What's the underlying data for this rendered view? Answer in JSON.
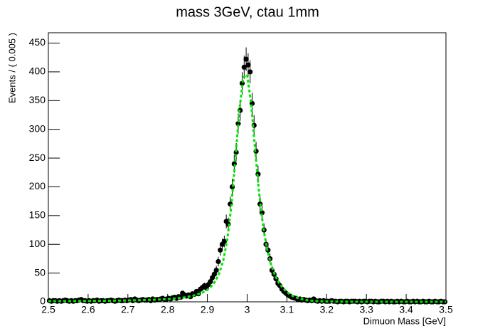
{
  "chart_data": {
    "type": "histogram",
    "title": "mass 3GeV, ctau 1mm",
    "x_label": "Dimuon Mass [GeV]",
    "y_label": "Events / ( 0.005 )",
    "color": "#000000",
    "bins": [
      2.5,
      2.505,
      2.51,
      2.515,
      2.52,
      2.525,
      2.53,
      2.535,
      2.54,
      2.545,
      2.55,
      2.555,
      2.56,
      2.565,
      2.57,
      2.575,
      2.58,
      2.585,
      2.59,
      2.595,
      2.6,
      2.605,
      2.61,
      2.615,
      2.62,
      2.625,
      2.63,
      2.635,
      2.64,
      2.645,
      2.65,
      2.655,
      2.66,
      2.665,
      2.67,
      2.675,
      2.68,
      2.685,
      2.69,
      2.695,
      2.7,
      2.705,
      2.71,
      2.715,
      2.72,
      2.725,
      2.73,
      2.735,
      2.74,
      2.745,
      2.75,
      2.755,
      2.76,
      2.765,
      2.77,
      2.775,
      2.78,
      2.785,
      2.79,
      2.795,
      2.8,
      2.805,
      2.81,
      2.815,
      2.82,
      2.825,
      2.83,
      2.835,
      2.84,
      2.845,
      2.85,
      2.855,
      2.86,
      2.865,
      2.87,
      2.875,
      2.88,
      2.885,
      2.89,
      2.895,
      2.9,
      2.905,
      2.91,
      2.915,
      2.92,
      2.925,
      2.93,
      2.935,
      2.94,
      2.945,
      2.95,
      2.955,
      2.96,
      2.965,
      2.97,
      2.975,
      2.98,
      2.985,
      2.99,
      2.995,
      3.0,
      3.005,
      3.01,
      3.015,
      3.02,
      3.025,
      3.03,
      3.035,
      3.04,
      3.045,
      3.05,
      3.055,
      3.06,
      3.065,
      3.07,
      3.075,
      3.08,
      3.085,
      3.09,
      3.095,
      3.1,
      3.105,
      3.11,
      3.115,
      3.12,
      3.125,
      3.13,
      3.135,
      3.14,
      3.145,
      3.15,
      3.155,
      3.16,
      3.165,
      3.17,
      3.175,
      3.18,
      3.185,
      3.19,
      3.195,
      3.2,
      3.205,
      3.21,
      3.215,
      3.22,
      3.225,
      3.23,
      3.235,
      3.24,
      3.245,
      3.25,
      3.255,
      3.26,
      3.265,
      3.27,
      3.275,
      3.28,
      3.285,
      3.29,
      3.295,
      3.3,
      3.305,
      3.31,
      3.315,
      3.32,
      3.325,
      3.33,
      3.335,
      3.34,
      3.345,
      3.35,
      3.355,
      3.36,
      3.365,
      3.37,
      3.375,
      3.38,
      3.385,
      3.39,
      3.395,
      3.4,
      3.405,
      3.41,
      3.415,
      3.42,
      3.425,
      3.43,
      3.435,
      3.44,
      3.445,
      3.45,
      3.455,
      3.46,
      3.465,
      3.47,
      3.475,
      3.48,
      3.485,
      3.49,
      3.495,
      3.5
    ],
    "values": [
      2,
      1,
      2,
      2,
      1,
      2,
      1,
      2,
      3,
      2,
      1,
      2,
      1,
      2,
      2,
      3,
      4,
      2,
      2,
      1,
      2,
      1,
      2,
      2,
      3,
      1,
      2,
      2,
      1,
      2,
      2,
      3,
      2,
      1,
      2,
      3,
      2,
      2,
      3,
      2,
      3,
      4,
      2,
      5,
      3,
      2,
      3,
      4,
      3,
      3,
      4,
      2,
      5,
      3,
      4,
      4,
      5,
      6,
      4,
      5,
      6,
      5,
      7,
      8,
      6,
      9,
      8,
      15,
      12,
      10,
      12,
      9,
      14,
      13,
      18,
      14,
      22,
      25,
      28,
      24,
      30,
      35,
      42,
      48,
      55,
      70,
      90,
      100,
      105,
      140,
      135,
      170,
      200,
      240,
      260,
      310,
      333,
      380,
      408,
      422,
      412,
      400,
      345,
      307,
      262,
      222,
      170,
      155,
      125,
      100,
      90,
      75,
      55,
      48,
      40,
      32,
      28,
      22,
      18,
      15,
      12,
      10,
      8,
      7,
      6,
      4,
      5,
      3,
      4,
      3,
      2,
      3,
      2,
      5,
      2,
      1,
      2,
      1,
      2,
      1,
      1,
      1,
      2,
      1,
      1,
      0,
      1,
      1,
      0,
      1,
      1,
      0,
      1,
      1,
      1,
      0,
      1,
      0,
      1,
      1,
      0,
      1,
      1,
      0,
      1,
      0,
      0,
      1,
      1,
      0,
      1,
      0,
      1,
      0,
      0,
      1,
      0,
      1,
      0,
      0,
      1,
      0,
      0,
      1,
      0,
      1,
      0,
      0,
      1,
      0,
      0,
      1,
      0,
      0,
      1,
      0,
      0,
      1,
      0,
      0
    ],
    "errors": [
      1.4,
      1,
      1.4,
      1.4,
      1,
      1.4,
      1,
      1.4,
      1.7,
      1.4,
      1,
      1.4,
      1,
      1.4,
      1.4,
      1.7,
      2,
      1.4,
      1.4,
      1,
      1.4,
      1,
      1.4,
      1.4,
      1.7,
      1,
      1.4,
      1.4,
      1,
      1.4,
      1.4,
      1.7,
      1.4,
      1,
      1.4,
      1.7,
      1.4,
      1.4,
      1.7,
      1.4,
      1.7,
      2,
      1.4,
      2.2,
      1.7,
      1.4,
      1.7,
      2,
      1.7,
      1.7,
      2,
      1.4,
      2.2,
      1.7,
      2,
      2,
      2.2,
      2.4,
      2,
      2.2,
      2.4,
      2.2,
      2.6,
      2.8,
      2.4,
      3,
      2.8,
      3.9,
      3.5,
      3.2,
      3.5,
      3,
      3.7,
      3.6,
      4.2,
      3.7,
      4.7,
      5,
      5.3,
      4.9,
      5.5,
      5.9,
      6.5,
      6.9,
      7.4,
      8.4,
      9.5,
      10,
      10.2,
      11.8,
      11.6,
      13,
      14.1,
      15.5,
      16.1,
      17.6,
      18.2,
      19.5,
      20.2,
      20.5,
      20.3,
      20,
      18.6,
      17.5,
      16.2,
      14.9,
      13,
      12.4,
      11.2,
      10,
      9.5,
      8.7,
      7.4,
      6.9,
      6.3,
      5.7,
      5.3,
      4.7,
      4.2,
      3.9,
      3.5,
      3.2,
      2.8,
      2.6,
      2.4,
      2,
      2.2,
      1.7,
      2,
      1.7,
      1.4,
      1.7,
      1.4,
      2.2,
      1.4,
      1,
      1.4,
      1,
      1.4,
      1,
      1,
      1,
      1.4,
      1,
      1,
      1.1,
      1,
      1,
      1.1,
      1,
      1,
      1.1,
      1,
      1,
      1,
      1.1,
      1,
      1.1,
      1,
      1,
      1.1,
      1,
      1,
      1.1,
      1,
      1.1,
      1.1,
      1,
      1,
      1.1,
      1,
      1.1,
      1,
      1.1,
      1.1,
      1,
      1.1,
      1,
      1.1,
      1.1,
      1,
      1.1,
      1.1,
      1,
      1.1,
      1,
      1.1,
      1.1,
      1,
      1.1,
      1.1,
      1,
      1.1,
      1.1,
      1,
      1.1,
      1.1,
      1,
      1.1,
      1.1
    ],
    "fit": {
      "color": "#00e600",
      "style": "dashed",
      "x": [
        2.5,
        2.51,
        2.52,
        2.53,
        2.54,
        2.55,
        2.56,
        2.57,
        2.58,
        2.59,
        2.6,
        2.61,
        2.62,
        2.63,
        2.64,
        2.65,
        2.66,
        2.67,
        2.68,
        2.69,
        2.7,
        2.71,
        2.72,
        2.73,
        2.74,
        2.75,
        2.76,
        2.77,
        2.78,
        2.79,
        2.8,
        2.81,
        2.82,
        2.83,
        2.84,
        2.85,
        2.86,
        2.87,
        2.88,
        2.89,
        2.9,
        2.91,
        2.92,
        2.93,
        2.94,
        2.95,
        2.96,
        2.97,
        2.98,
        2.99,
        3.0,
        3.01,
        3.02,
        3.03,
        3.04,
        3.05,
        3.06,
        3.07,
        3.08,
        3.09,
        3.1,
        3.11,
        3.12,
        3.13,
        3.14,
        3.15,
        3.16,
        3.17,
        3.18,
        3.19,
        3.2,
        3.21,
        3.22,
        3.23,
        3.24,
        3.25,
        3.26,
        3.27,
        3.28,
        3.29,
        3.3,
        3.31,
        3.32,
        3.33,
        3.34,
        3.35,
        3.36,
        3.37,
        3.38,
        3.39,
        3.4,
        3.41,
        3.42,
        3.43,
        3.44,
        3.45,
        3.46,
        3.47,
        3.48,
        3.49,
        3.5
      ],
      "values": [
        1.2,
        1.2,
        1.3,
        1.3,
        1.3,
        1.4,
        1.4,
        1.5,
        1.5,
        1.6,
        1.6,
        1.7,
        1.7,
        1.8,
        1.9,
        1.9,
        2,
        2.1,
        2.2,
        2.3,
        2.4,
        2.5,
        2.7,
        2.8,
        3,
        3.2,
        3.4,
        3.7,
        4,
        4.4,
        4.8,
        5.3,
        5.9,
        6.6,
        7.5,
        8.6,
        10,
        11.7,
        14,
        17,
        21,
        27,
        36,
        50,
        72,
        108,
        165,
        245,
        330,
        390,
        395,
        345,
        265,
        190,
        132,
        92,
        65,
        46,
        33,
        24,
        17,
        12,
        8.5,
        6,
        4.2,
        3,
        2.2,
        1.6,
        1.2,
        0.9,
        0.7,
        0.6,
        0.5,
        0.4,
        0.4,
        0.3,
        0.3,
        0.3,
        0.2,
        0.2,
        0.2,
        0.2,
        0.2,
        0.2,
        0.1,
        0.1,
        0.1,
        0.1,
        0.1,
        0.1,
        0.1,
        0.1,
        0.1,
        0.1,
        0.1,
        0.1,
        0.1,
        0.1,
        0.1,
        0.1,
        0.1
      ]
    },
    "xlim": [
      2.5,
      3.5
    ],
    "ylim": [
      0,
      468
    ],
    "xticks": [
      2.5,
      2.6,
      2.7,
      2.8,
      2.9,
      3,
      3.1,
      3.2,
      3.3,
      3.4,
      3.5
    ],
    "yticks": [
      0,
      50,
      100,
      150,
      200,
      250,
      300,
      350,
      400,
      450
    ]
  }
}
